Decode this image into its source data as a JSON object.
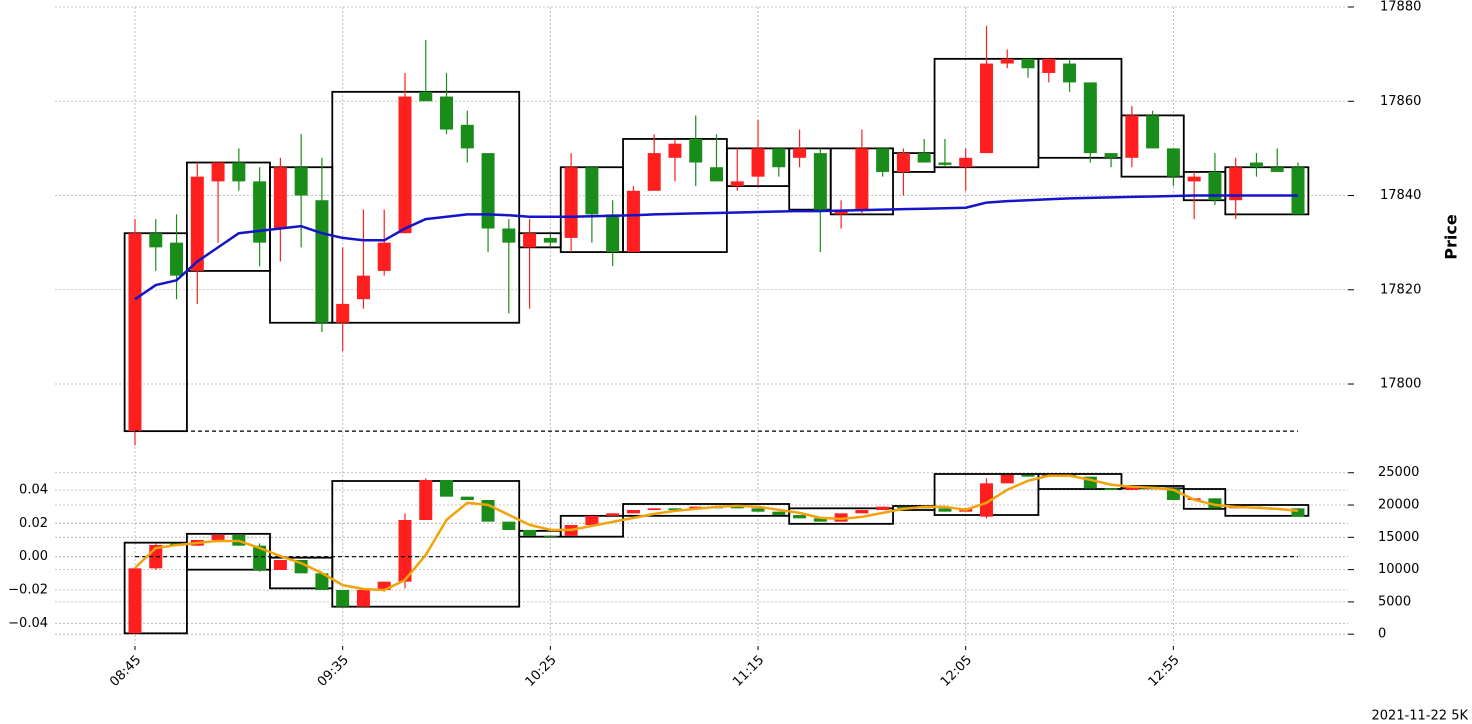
{
  "chart_data": [
    {
      "type": "candlestick",
      "ylabel": "Price",
      "ylim": [
        17786,
        17880
      ],
      "yticks": [
        17800,
        17820,
        17840,
        17860,
        17880
      ],
      "grid": true,
      "up_color": "#ff1f1f",
      "down_color": "#1a8c1a",
      "box_color": "#000000",
      "hline": 17790,
      "open": [
        17790,
        17832,
        17830,
        17824,
        17843,
        17847,
        17843,
        17833,
        17846,
        17839,
        17813,
        17818,
        17824,
        17832,
        17862,
        17861,
        17855,
        17849,
        17833,
        17829,
        17831,
        17831,
        17846,
        17836,
        17828,
        17841,
        17848,
        17852,
        17846,
        17842,
        17844,
        17850,
        17848,
        17849,
        17836,
        17837,
        17850,
        17845,
        17849,
        17847,
        17846,
        17849,
        17868,
        17869,
        17866,
        17868,
        17864,
        17849,
        17848,
        17857,
        17850,
        17843,
        17845,
        17839,
        17847,
        17846,
        17846
      ],
      "high": [
        17835,
        17835,
        17836,
        17847,
        17847,
        17850,
        17846,
        17848,
        17853,
        17848,
        17829,
        17837,
        17837,
        17866,
        17873,
        17866,
        17858,
        17849,
        17835,
        17835,
        17832,
        17849,
        17846,
        17839,
        17842,
        17853,
        17852,
        17857,
        17853,
        17850,
        17856,
        17850,
        17854,
        17850,
        17839,
        17854,
        17850,
        17850,
        17852,
        17852,
        17850,
        17876,
        17871,
        17869,
        17869,
        17869,
        17864,
        17849,
        17859,
        17858,
        17850,
        17845,
        17849,
        17848,
        17849,
        17850,
        17847
      ],
      "low": [
        17787,
        17824,
        17818,
        17817,
        17830,
        17841,
        17825,
        17826,
        17829,
        17811,
        17807,
        17816,
        17823,
        17832,
        17860,
        17853,
        17847,
        17828,
        17815,
        17816,
        17829,
        17828,
        17830,
        17825,
        17828,
        17841,
        17843,
        17842,
        17843,
        17841,
        17842,
        17844,
        17846,
        17828,
        17833,
        17836,
        17844,
        17840,
        17847,
        17846,
        17841,
        17849,
        17867,
        17865,
        17864,
        17862,
        17847,
        17846,
        17846,
        17850,
        17842,
        17835,
        17838,
        17835,
        17844,
        17845,
        17836
      ],
      "close": [
        17832,
        17829,
        17823,
        17844,
        17847,
        17843,
        17830,
        17846,
        17840,
        17813,
        17817,
        17823,
        17830,
        17861,
        17860,
        17854,
        17850,
        17833,
        17830,
        17832,
        17830,
        17846,
        17836,
        17828,
        17841,
        17849,
        17851,
        17847,
        17843,
        17843,
        17850,
        17846,
        17850,
        17837,
        17837,
        17850,
        17845,
        17849,
        17847,
        17846.5,
        17848,
        17868,
        17869,
        17867,
        17869,
        17864,
        17849,
        17848,
        17857,
        17850,
        17844,
        17844,
        17839,
        17846,
        17846,
        17845,
        17836
      ],
      "lines": [
        {
          "color": "#1414c8",
          "values": [
            17818,
            17821,
            17822,
            17826,
            17829,
            17832,
            17832.5,
            17833,
            17833.5,
            17832,
            17831,
            17830.5,
            17830.5,
            17833,
            17835,
            17835.5,
            17836,
            17836,
            17835.8,
            17835.5,
            17835.5,
            17835.5,
            17835.6,
            17835.7,
            17835.8,
            17836,
            17836.1,
            17836.2,
            17836.3,
            17836.4,
            17836.5,
            17836.6,
            17836.7,
            17836.7,
            17836.8,
            17836.9,
            17837,
            17837.1,
            17837.2,
            17837.3,
            17837.4,
            17838.5,
            17838.8,
            17839,
            17839.2,
            17839.4,
            17839.5,
            17839.6,
            17839.7,
            17839.8,
            17839.9,
            17840,
            17840,
            17840,
            17840,
            17840,
            17840
          ]
        }
      ],
      "boxes": {
        "start": [
          0,
          3,
          7,
          10,
          19,
          21,
          24,
          29,
          32,
          34,
          37,
          39,
          44,
          48,
          51,
          53
        ],
        "end": [
          2,
          6,
          9,
          18,
          20,
          23,
          28,
          31,
          33,
          36,
          38,
          43,
          47,
          50,
          52,
          56
        ],
        "low": [
          17790,
          17824,
          17813,
          17813,
          17829,
          17828,
          17828,
          17842,
          17837,
          17836,
          17845,
          17846,
          17848,
          17844,
          17839,
          17836
        ],
        "high": [
          17832,
          17847,
          17846,
          17862,
          17832,
          17846,
          17852,
          17850,
          17850,
          17850,
          17849,
          17869,
          17869,
          17857,
          17845,
          17846
        ]
      }
    },
    {
      "type": "candlestick",
      "caption": "2021-11-22 5K",
      "categories": [
        "08:45",
        null,
        null,
        null,
        null,
        null,
        null,
        null,
        null,
        null,
        "09:35",
        null,
        null,
        null,
        null,
        null,
        null,
        null,
        null,
        null,
        "10:25",
        null,
        null,
        null,
        null,
        null,
        null,
        null,
        null,
        null,
        "11:15",
        null,
        null,
        null,
        null,
        null,
        null,
        null,
        null,
        null,
        "12:05",
        null,
        null,
        null,
        null,
        null,
        null,
        null,
        null,
        null,
        "12:55",
        null,
        null,
        null,
        null,
        null,
        null
      ],
      "ylim": [
        -0.05,
        0.055
      ],
      "yticks": [
        {
          "value": -0.04,
          "label": "−0.04"
        },
        {
          "value": -0.02,
          "label": "−0.02"
        },
        {
          "value": 0,
          "label": "0.00"
        },
        0.02,
        0.04
      ],
      "y2lim": [
        -900,
        26200
      ],
      "y2ticks": [
        0,
        5000,
        10000,
        15000,
        20000,
        25000
      ],
      "grid": true,
      "up_color": "#ff1f1f",
      "down_color": "#1a8c1a",
      "box_color": "#000000",
      "hline": 0,
      "open": [
        -0.046,
        -0.007,
        0.008,
        0.0066,
        0.01,
        0.013,
        0.0066,
        -0.008,
        -0.002,
        -0.01,
        -0.02,
        -0.03,
        -0.02,
        -0.015,
        0.022,
        0.046,
        0.036,
        0.034,
        0.021,
        0.016,
        0.0125,
        0.0125,
        0.019,
        0.0245,
        0.026,
        0.028,
        0.029,
        0.0285,
        0.03,
        0.03,
        0.029,
        0.027,
        0.025,
        0.023,
        0.021,
        0.026,
        0.028,
        0.03,
        0.03,
        0.029,
        0.027,
        0.024,
        0.044,
        0.049,
        0.048,
        0.049,
        0.048,
        0.041,
        0.04,
        0.042,
        0.041,
        0.034,
        0.035,
        0.029,
        0.03,
        0.029,
        0.029
      ],
      "high": [
        -0.007,
        0.008,
        0.008,
        0.01,
        0.013,
        0.013,
        0.008,
        -0.002,
        -0.002,
        -0.01,
        -0.02,
        -0.02,
        -0.015,
        0.026,
        0.047,
        0.046,
        0.036,
        0.034,
        0.021,
        0.016,
        0.0125,
        0.019,
        0.0245,
        0.026,
        0.028,
        0.029,
        0.029,
        0.03,
        0.03,
        0.03,
        0.029,
        0.027,
        0.025,
        0.023,
        0.026,
        0.028,
        0.03,
        0.03,
        0.03,
        0.029,
        0.029,
        0.047,
        0.049,
        0.049,
        0.049,
        0.049,
        0.048,
        0.041,
        0.042,
        0.042,
        0.041,
        0.035,
        0.035,
        0.03,
        0.03,
        0.029,
        0.029
      ],
      "low": [
        -0.046,
        -0.008,
        0.0066,
        0.0066,
        0.01,
        0.0066,
        -0.009,
        -0.008,
        -0.01,
        -0.02,
        -0.03,
        -0.03,
        -0.021,
        -0.019,
        0.022,
        0.036,
        0.034,
        0.021,
        0.016,
        0.0125,
        0.012,
        0.0125,
        0.019,
        0.0245,
        0.026,
        0.028,
        0.028,
        0.0285,
        0.029,
        0.029,
        0.027,
        0.025,
        0.023,
        0.021,
        0.021,
        0.026,
        0.028,
        0.029,
        0.029,
        0.027,
        0.027,
        0.023,
        0.044,
        0.048,
        0.048,
        0.048,
        0.041,
        0.04,
        0.04,
        0.041,
        0.034,
        0.034,
        0.029,
        0.029,
        0.029,
        0.028,
        0.024
      ],
      "close": [
        -0.007,
        0.007,
        0.0066,
        0.01,
        0.013,
        0.0066,
        -0.008,
        -0.002,
        -0.01,
        -0.02,
        -0.03,
        -0.02,
        -0.015,
        0.022,
        0.046,
        0.036,
        0.034,
        0.021,
        0.016,
        0.0125,
        0.012,
        0.019,
        0.0245,
        0.026,
        0.028,
        0.029,
        0.028,
        0.03,
        0.029,
        0.029,
        0.027,
        0.025,
        0.023,
        0.021,
        0.026,
        0.028,
        0.03,
        0.029,
        0.029,
        0.027,
        0.029,
        0.044,
        0.049,
        0.048,
        0.049,
        0.048,
        0.041,
        0.04,
        0.042,
        0.041,
        0.034,
        0.035,
        0.029,
        0.03,
        0.029,
        0.028,
        0.024
      ],
      "lines": [
        {
          "color": "#f0a30a",
          "axis": "y2",
          "values": [
            10250,
            13350,
            13800,
            14130,
            14440,
            14440,
            13350,
            12100,
            11000,
            9470,
            7600,
            7000,
            6830,
            8400,
            12270,
            17700,
            20340,
            20030,
            18480,
            16930,
            16150,
            16150,
            16770,
            17390,
            18010,
            18630,
            19100,
            19410,
            19720,
            19880,
            19720,
            19260,
            18790,
            18010,
            17860,
            18170,
            18790,
            19410,
            19720,
            19720,
            19260,
            20340,
            22360,
            23760,
            24530,
            24530,
            23910,
            23140,
            22830,
            22670,
            22360,
            20810,
            20030,
            19720,
            19570,
            19410,
            19100
          ]
        }
      ],
      "boxes": {
        "start": [
          0,
          3,
          7,
          10,
          19,
          21,
          24,
          32,
          37,
          39,
          44,
          48,
          51,
          53
        ],
        "end": [
          2,
          6,
          9,
          18,
          20,
          23,
          31,
          36,
          38,
          43,
          47,
          50,
          52,
          56
        ],
        "low": [
          -0.046,
          -0.0078,
          -0.019,
          -0.03,
          0.012,
          0.012,
          0.0245,
          0.0197,
          0.028,
          0.025,
          0.0406,
          0.041,
          0.0287,
          0.0245
        ],
        "high": [
          0.0084,
          0.0137,
          -0.0006,
          0.0454,
          0.0155,
          0.0245,
          0.0316,
          0.029,
          0.0304,
          0.0496,
          0.0496,
          0.0424,
          0.0406,
          0.031
        ]
      }
    }
  ]
}
